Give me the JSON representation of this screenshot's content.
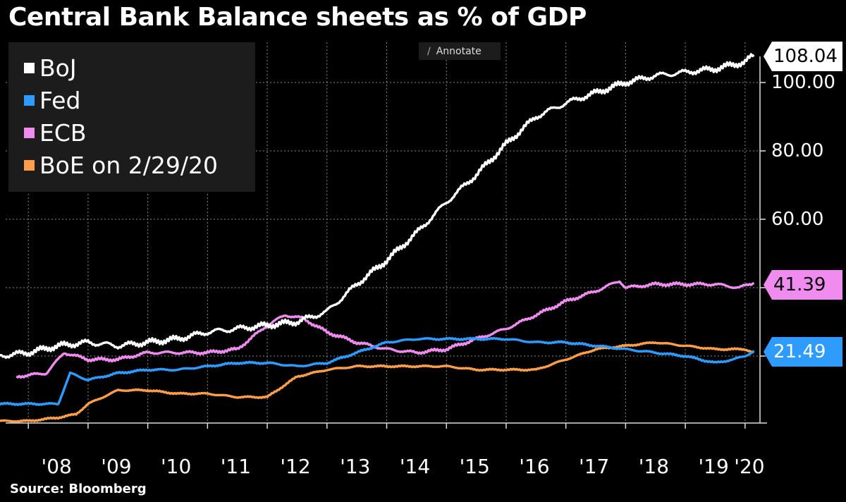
{
  "title": "Central Bank Balance sheets as % of GDP",
  "source": "Source: Bloomberg",
  "annotate_label": "Annotate",
  "colors": {
    "boj": "#ffffff",
    "fed": "#2e9bff",
    "ecb": "#f08cf0",
    "boe": "#ff9e48",
    "background": "#000000",
    "legend_bg": "#1c1c1c"
  },
  "chart_data": {
    "type": "line",
    "title": "Central Bank Balance sheets as % of GDP",
    "ylim": [
      0,
      110
    ],
    "y_ticks": [
      "100.00",
      "80.00",
      "60.00"
    ],
    "x_tick_labels": [
      "'08",
      "'09",
      "'10",
      "'11",
      "'12",
      "'13",
      "'14",
      "'15",
      "'16",
      "'17",
      "'18",
      "'19",
      "'20"
    ],
    "legend": [
      "BoJ",
      "Fed",
      "ECB",
      "BoE on 2/29/20"
    ],
    "last_values": {
      "boj": "108.04",
      "ecb": "41.39",
      "fed": "21.49"
    },
    "series": [
      {
        "name": "BoJ",
        "key": "boj",
        "x": [
          2007.5,
          2008.0,
          2008.5,
          2009.0,
          2009.5,
          2010.0,
          2010.5,
          2011.0,
          2011.5,
          2012.0,
          2012.5,
          2013.0,
          2013.5,
          2014.0,
          2014.5,
          2015.0,
          2015.5,
          2016.0,
          2016.5,
          2017.0,
          2017.5,
          2018.0,
          2018.5,
          2019.0,
          2019.5,
          2020.0,
          2020.15
        ],
        "y": [
          20,
          21,
          23,
          24,
          23,
          24,
          25,
          27,
          28,
          29,
          30,
          33,
          41,
          48,
          56,
          65,
          73,
          82,
          90,
          94,
          97,
          100,
          102,
          103,
          104,
          106,
          108.04
        ]
      },
      {
        "name": "Fed",
        "key": "fed",
        "x": [
          2007.5,
          2008.5,
          2008.7,
          2009.0,
          2009.5,
          2010.0,
          2010.5,
          2011.0,
          2011.5,
          2012.0,
          2012.5,
          2013.0,
          2013.5,
          2014.0,
          2014.5,
          2015.0,
          2015.5,
          2016.0,
          2016.5,
          2017.0,
          2017.5,
          2018.0,
          2018.5,
          2019.0,
          2019.5,
          2019.8,
          2020.0,
          2020.15
        ],
        "y": [
          6,
          6,
          15,
          13,
          15,
          16,
          16,
          17,
          18,
          18,
          17,
          18,
          21,
          24,
          25,
          25,
          25,
          25,
          24,
          24,
          23,
          22,
          21,
          20,
          18,
          19,
          20,
          21.49
        ]
      },
      {
        "name": "ECB",
        "key": "ecb",
        "x": [
          2007.8,
          2008.3,
          2008.6,
          2009.0,
          2009.5,
          2010.0,
          2010.5,
          2011.0,
          2011.5,
          2012.0,
          2012.3,
          2012.6,
          2013.0,
          2013.5,
          2014.0,
          2014.5,
          2015.0,
          2015.5,
          2016.0,
          2016.5,
          2017.0,
          2017.5,
          2017.9,
          2018.0,
          2018.5,
          2019.0,
          2019.5,
          2019.9,
          2020.15
        ],
        "y": [
          14,
          15,
          21,
          19,
          19,
          21,
          21,
          21,
          22,
          29,
          32,
          31,
          27,
          24,
          22,
          21,
          22,
          25,
          28,
          32,
          36,
          39,
          42,
          40,
          41,
          41,
          41,
          40,
          41.39
        ]
      },
      {
        "name": "BoE on 2/29/20",
        "key": "boe",
        "x": [
          2007.5,
          2008.0,
          2008.5,
          2008.8,
          2009.0,
          2009.5,
          2010.0,
          2010.5,
          2011.0,
          2011.5,
          2012.0,
          2012.5,
          2013.0,
          2013.5,
          2014.0,
          2014.5,
          2015.0,
          2015.5,
          2016.0,
          2016.5,
          2017.0,
          2017.5,
          2018.0,
          2018.5,
          2019.0,
          2019.5,
          2020.0,
          2020.15
        ],
        "y": [
          1,
          1,
          2,
          3,
          6,
          10,
          10,
          9,
          9,
          8,
          8,
          14,
          16,
          17,
          17,
          17,
          17,
          16,
          16,
          16,
          19,
          22,
          23,
          24,
          23,
          22,
          22,
          21
        ]
      }
    ]
  }
}
